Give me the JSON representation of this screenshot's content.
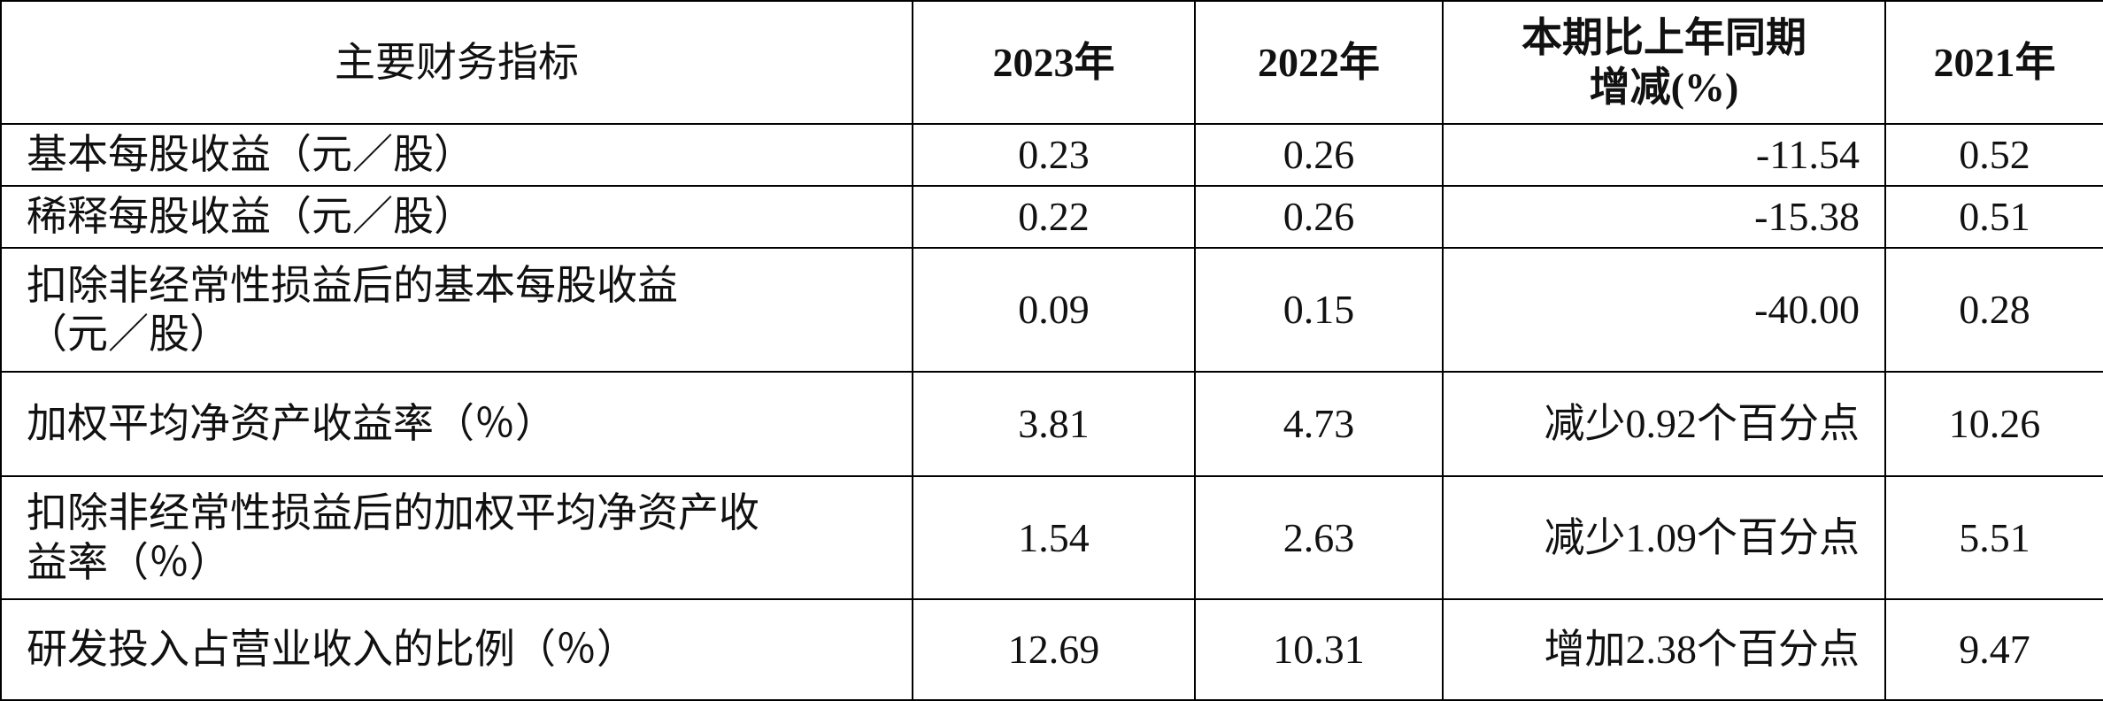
{
  "table": {
    "header": [
      "主要财务指标",
      "2023年",
      "2022年",
      "本期比上年同期\n增减(%)",
      "2021年"
    ],
    "rows": [
      [
        "基本每股收益（元／股）",
        "0.23",
        "0.26",
        "-11.54",
        "0.52"
      ],
      [
        "稀释每股收益（元／股）",
        "0.22",
        "0.26",
        "-15.38",
        "0.51"
      ],
      [
        "扣除非经常性损益后的基本每股收益\n（元／股）",
        "0.09",
        "0.15",
        "-40.00",
        "0.28"
      ],
      [
        "加权平均净资产收益率（％）",
        "3.81",
        "4.73",
        "减少0.92个百分点",
        "10.26"
      ],
      [
        "扣除非经常性损益后的加权平均净资产收\n益率（％）",
        "1.54",
        "2.63",
        "减少1.09个百分点",
        "5.51"
      ],
      [
        "研发投入占营业收入的比例（％）",
        "12.69",
        "10.31",
        "增加2.38个百分点",
        "9.47"
      ]
    ]
  }
}
